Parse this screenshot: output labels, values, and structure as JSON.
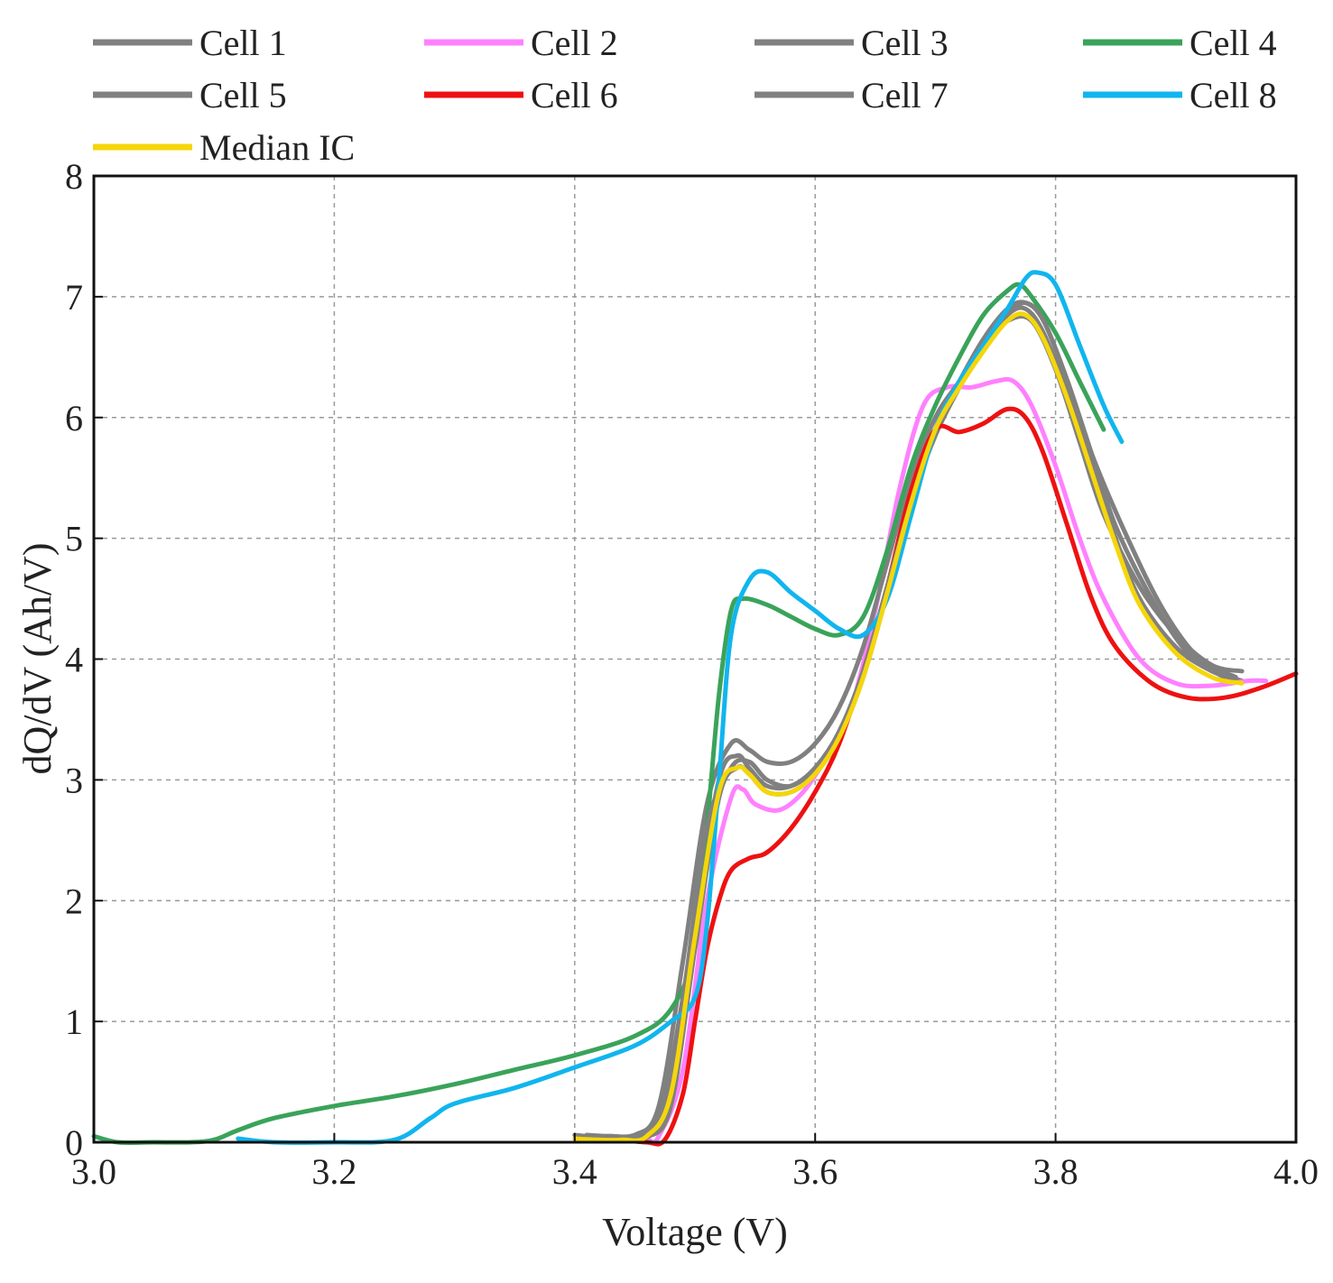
{
  "chart_data": {
    "type": "line",
    "title": "",
    "xlabel": "Voltage (V)",
    "ylabel": "dQ/dV (Ah/V)",
    "xlim": [
      3.0,
      4.0
    ],
    "ylim": [
      0,
      8
    ],
    "xticks": [
      3.0,
      3.2,
      3.4,
      3.6,
      3.8,
      4.0
    ],
    "xtick_labels": [
      "3.0",
      "3.2",
      "3.4",
      "3.6",
      "3.8",
      "4.0"
    ],
    "yticks": [
      0,
      1,
      2,
      3,
      4,
      5,
      6,
      7,
      8
    ],
    "ytick_labels": [
      "0",
      "1",
      "2",
      "3",
      "4",
      "5",
      "6",
      "7",
      "8"
    ],
    "grid": true,
    "legend_position": "top",
    "series": [
      {
        "name": "Cell 1",
        "color": "#808080",
        "x": [
          3.4,
          3.42,
          3.44,
          3.46,
          3.48,
          3.5,
          3.52,
          3.535,
          3.545,
          3.56,
          3.58,
          3.6,
          3.62,
          3.64,
          3.66,
          3.68,
          3.7,
          3.72,
          3.74,
          3.76,
          3.775,
          3.79,
          3.81,
          3.83,
          3.85,
          3.87,
          3.9,
          3.93,
          3.955
        ],
        "y": [
          0.06,
          0.04,
          0.04,
          0.08,
          0.5,
          1.8,
          3.0,
          3.2,
          3.1,
          2.95,
          2.95,
          3.1,
          3.4,
          3.9,
          4.6,
          5.3,
          5.9,
          6.3,
          6.6,
          6.85,
          6.9,
          6.7,
          6.2,
          5.6,
          5.0,
          4.5,
          4.1,
          3.9,
          3.82
        ]
      },
      {
        "name": "Cell 2",
        "color": "#ff80ff",
        "x": [
          3.44,
          3.46,
          3.47,
          3.49,
          3.51,
          3.53,
          3.54,
          3.55,
          3.57,
          3.59,
          3.61,
          3.63,
          3.65,
          3.67,
          3.69,
          3.71,
          3.73,
          3.75,
          3.765,
          3.78,
          3.8,
          3.82,
          3.84,
          3.87,
          3.9,
          3.93,
          3.96,
          3.975
        ],
        "y": [
          0.02,
          0.02,
          0.05,
          0.6,
          2.0,
          2.85,
          2.92,
          2.8,
          2.75,
          2.9,
          3.2,
          3.6,
          4.4,
          5.4,
          6.1,
          6.25,
          6.25,
          6.3,
          6.3,
          6.1,
          5.6,
          5.0,
          4.5,
          4.0,
          3.8,
          3.78,
          3.82,
          3.82
        ]
      },
      {
        "name": "Cell 3",
        "color": "#808080",
        "x": [
          3.41,
          3.43,
          3.45,
          3.47,
          3.49,
          3.51,
          3.53,
          3.545,
          3.56,
          3.58,
          3.6,
          3.62,
          3.64,
          3.66,
          3.68,
          3.7,
          3.72,
          3.74,
          3.76,
          3.78,
          3.8,
          3.82,
          3.84,
          3.87,
          3.9,
          3.93,
          3.955
        ],
        "y": [
          0.05,
          0.05,
          0.06,
          0.3,
          1.5,
          2.8,
          3.3,
          3.25,
          3.15,
          3.15,
          3.3,
          3.6,
          4.1,
          4.8,
          5.5,
          6.0,
          6.3,
          6.6,
          6.8,
          6.8,
          6.4,
          5.8,
          5.2,
          4.6,
          4.2,
          3.95,
          3.9
        ]
      },
      {
        "name": "Cell 4",
        "color": "#3aa35a",
        "x": [
          3.0,
          3.02,
          3.05,
          3.08,
          3.1,
          3.12,
          3.15,
          3.2,
          3.25,
          3.3,
          3.35,
          3.4,
          3.45,
          3.48,
          3.5,
          3.51,
          3.52,
          3.53,
          3.54,
          3.56,
          3.58,
          3.6,
          3.62,
          3.64,
          3.66,
          3.68,
          3.7,
          3.72,
          3.74,
          3.76,
          3.77,
          3.78,
          3.8,
          3.82,
          3.84
        ],
        "y": [
          0.05,
          0.0,
          0.0,
          0.0,
          0.02,
          0.1,
          0.2,
          0.3,
          0.38,
          0.48,
          0.6,
          0.72,
          0.88,
          1.1,
          1.6,
          2.6,
          3.7,
          4.4,
          4.5,
          4.45,
          4.35,
          4.25,
          4.2,
          4.35,
          4.9,
          5.6,
          6.1,
          6.5,
          6.85,
          7.05,
          7.1,
          7.0,
          6.7,
          6.3,
          5.9
        ]
      },
      {
        "name": "Cell 5",
        "color": "#808080",
        "x": [
          3.42,
          3.44,
          3.46,
          3.48,
          3.5,
          3.52,
          3.535,
          3.545,
          3.56,
          3.58,
          3.6,
          3.62,
          3.64,
          3.66,
          3.68,
          3.7,
          3.72,
          3.74,
          3.76,
          3.775,
          3.79,
          3.81,
          3.83,
          3.85,
          3.88,
          3.91,
          3.94
        ],
        "y": [
          0.04,
          0.03,
          0.04,
          0.3,
          1.6,
          2.85,
          3.1,
          3.05,
          2.9,
          2.9,
          3.05,
          3.35,
          3.85,
          4.55,
          5.3,
          5.85,
          6.25,
          6.6,
          6.85,
          6.95,
          6.8,
          6.3,
          5.7,
          5.1,
          4.5,
          4.05,
          3.85
        ]
      },
      {
        "name": "Cell 6",
        "color": "#ee1111",
        "x": [
          3.42,
          3.44,
          3.46,
          3.475,
          3.49,
          3.5,
          3.51,
          3.52,
          3.53,
          3.545,
          3.56,
          3.58,
          3.6,
          3.62,
          3.64,
          3.66,
          3.68,
          3.7,
          3.72,
          3.74,
          3.76,
          3.775,
          3.79,
          3.81,
          3.83,
          3.85,
          3.88,
          3.91,
          3.94,
          3.97,
          4.0
        ],
        "y": [
          0.05,
          0.02,
          0.0,
          0.02,
          0.4,
          1.0,
          1.6,
          2.0,
          2.25,
          2.35,
          2.4,
          2.6,
          2.9,
          3.3,
          3.9,
          4.6,
          5.4,
          5.9,
          5.88,
          5.95,
          6.07,
          6.0,
          5.7,
          5.1,
          4.5,
          4.1,
          3.8,
          3.68,
          3.68,
          3.76,
          3.88
        ]
      },
      {
        "name": "Cell 7",
        "color": "#808080",
        "x": [
          3.41,
          3.43,
          3.45,
          3.47,
          3.49,
          3.51,
          3.53,
          3.545,
          3.56,
          3.58,
          3.6,
          3.62,
          3.64,
          3.66,
          3.68,
          3.7,
          3.72,
          3.74,
          3.76,
          3.775,
          3.79,
          3.81,
          3.83,
          3.86,
          3.89,
          3.92,
          3.95
        ],
        "y": [
          0.06,
          0.05,
          0.06,
          0.2,
          1.2,
          2.6,
          3.1,
          3.15,
          3.0,
          2.95,
          3.1,
          3.4,
          3.9,
          4.6,
          5.3,
          5.9,
          6.3,
          6.65,
          6.9,
          6.95,
          6.8,
          6.3,
          5.7,
          5.0,
          4.4,
          4.0,
          3.85
        ]
      },
      {
        "name": "Cell 8",
        "color": "#11b5ee",
        "x": [
          3.12,
          3.15,
          3.2,
          3.25,
          3.28,
          3.3,
          3.35,
          3.4,
          3.45,
          3.48,
          3.5,
          3.51,
          3.52,
          3.53,
          3.545,
          3.56,
          3.58,
          3.6,
          3.62,
          3.64,
          3.66,
          3.68,
          3.7,
          3.72,
          3.74,
          3.76,
          3.775,
          3.785,
          3.8,
          3.82,
          3.84,
          3.855
        ],
        "y": [
          0.03,
          0.0,
          0.0,
          0.02,
          0.2,
          0.32,
          0.45,
          0.62,
          0.8,
          1.0,
          1.2,
          1.8,
          3.0,
          4.2,
          4.65,
          4.72,
          4.55,
          4.4,
          4.25,
          4.2,
          4.5,
          5.2,
          5.9,
          6.3,
          6.6,
          6.9,
          7.15,
          7.2,
          7.1,
          6.6,
          6.1,
          5.8
        ]
      },
      {
        "name": "Median IC",
        "color": "#f5d60a",
        "x": [
          3.4,
          3.42,
          3.44,
          3.46,
          3.48,
          3.5,
          3.52,
          3.535,
          3.545,
          3.56,
          3.58,
          3.6,
          3.62,
          3.64,
          3.66,
          3.68,
          3.7,
          3.72,
          3.74,
          3.76,
          3.775,
          3.79,
          3.81,
          3.83,
          3.85,
          3.87,
          3.9,
          3.93,
          3.955
        ],
        "y": [
          0.03,
          0.02,
          0.02,
          0.05,
          0.4,
          1.7,
          2.9,
          3.1,
          3.05,
          2.9,
          2.9,
          3.05,
          3.35,
          3.85,
          4.55,
          5.3,
          5.9,
          6.25,
          6.55,
          6.8,
          6.85,
          6.65,
          6.15,
          5.55,
          4.95,
          4.45,
          4.05,
          3.85,
          3.8
        ]
      }
    ]
  }
}
